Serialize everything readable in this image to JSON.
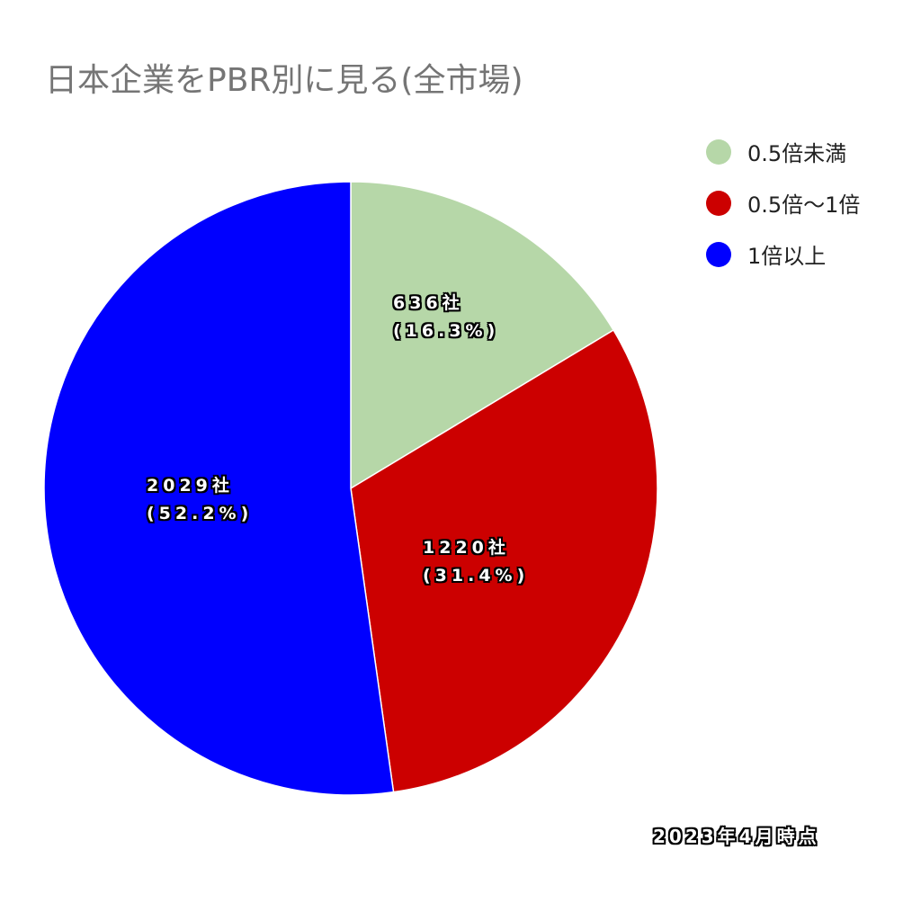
{
  "chart_data": {
    "type": "pie",
    "title": "日本企業をPBR別に見る(全市場)",
    "legend_position": "top-right",
    "categories": [
      "0.5倍未満",
      "0.5倍〜1倍",
      "1倍以上"
    ],
    "values": [
      636,
      1220,
      2029
    ],
    "percentages": [
      "16.3%",
      "31.4%",
      "52.2%"
    ],
    "colors": [
      "#b6d7a8",
      "#cc0000",
      "#0000ff"
    ],
    "labels": [
      {
        "line1": "636社",
        "line2": "(16.3%)"
      },
      {
        "line1": "1220社",
        "line2": "(31.4%)"
      },
      {
        "line1": "2029社",
        "line2": "(52.2%)"
      }
    ],
    "annotation": "2023年4月時点"
  }
}
